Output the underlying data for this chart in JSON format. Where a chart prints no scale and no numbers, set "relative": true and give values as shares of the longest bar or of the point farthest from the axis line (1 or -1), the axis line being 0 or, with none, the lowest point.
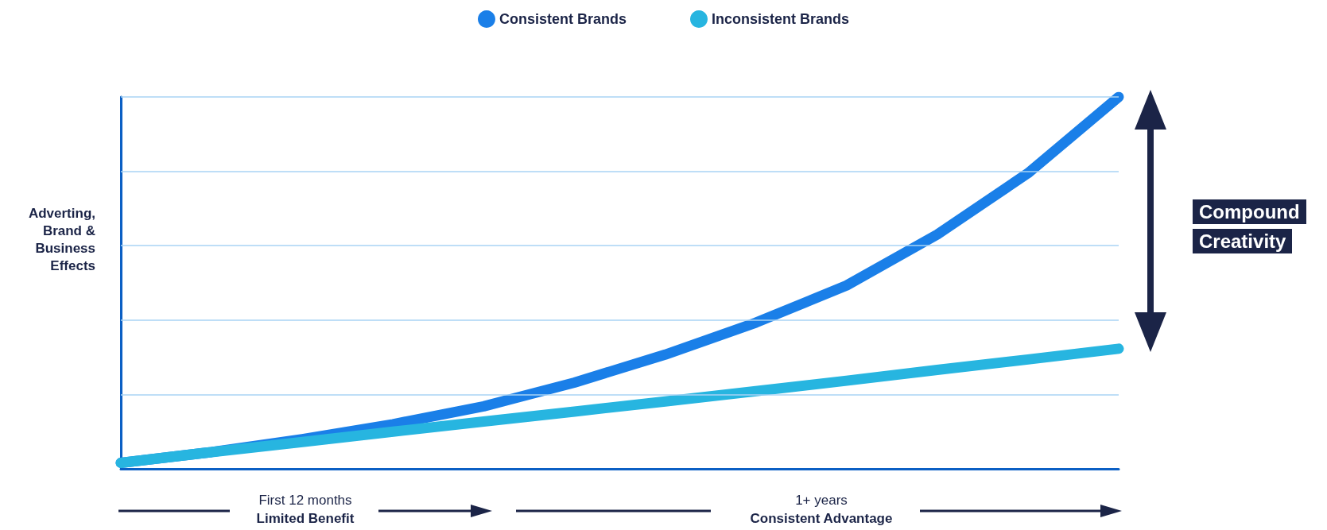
{
  "chart_data": {
    "type": "line",
    "relative": true,
    "ylabel": "Adverting, Brand & Business Effects",
    "categories": [
      null,
      null,
      null,
      null,
      null,
      null,
      null,
      null,
      null,
      null,
      null,
      null
    ],
    "series": [
      {
        "name": "Consistent Brands",
        "color": "#1a7fe8",
        "values": [
          0.016,
          0.045,
          0.08,
          0.12,
          0.168,
          0.232,
          0.307,
          0.393,
          0.493,
          0.63,
          0.795,
          1.0
        ]
      },
      {
        "name": "Inconsistent Brands",
        "color": "#27b5e0",
        "values": [
          0.016,
          0.045,
          0.072,
          0.1,
          0.127,
          0.154,
          0.181,
          0.209,
          0.237,
          0.266,
          0.294,
          0.323
        ]
      }
    ],
    "annotations": [
      "Compound Creativity",
      "First 12 months",
      "Limited Benefit",
      "1+ years",
      "Consistent Advantage"
    ],
    "ref_lines": [
      {
        "axis": "y",
        "value": 0.2,
        "color": "#a9d3f5"
      },
      {
        "axis": "y",
        "value": 0.4,
        "color": "#a9d3f5"
      },
      {
        "axis": "y",
        "value": 0.6,
        "color": "#a9d3f5"
      },
      {
        "axis": "y",
        "value": 0.8,
        "color": "#a9d3f5"
      },
      {
        "axis": "y",
        "value": 1.0,
        "color": "#a9d3f5"
      }
    ],
    "legend": "top",
    "marker": "none",
    "line_style": "solid"
  }
}
